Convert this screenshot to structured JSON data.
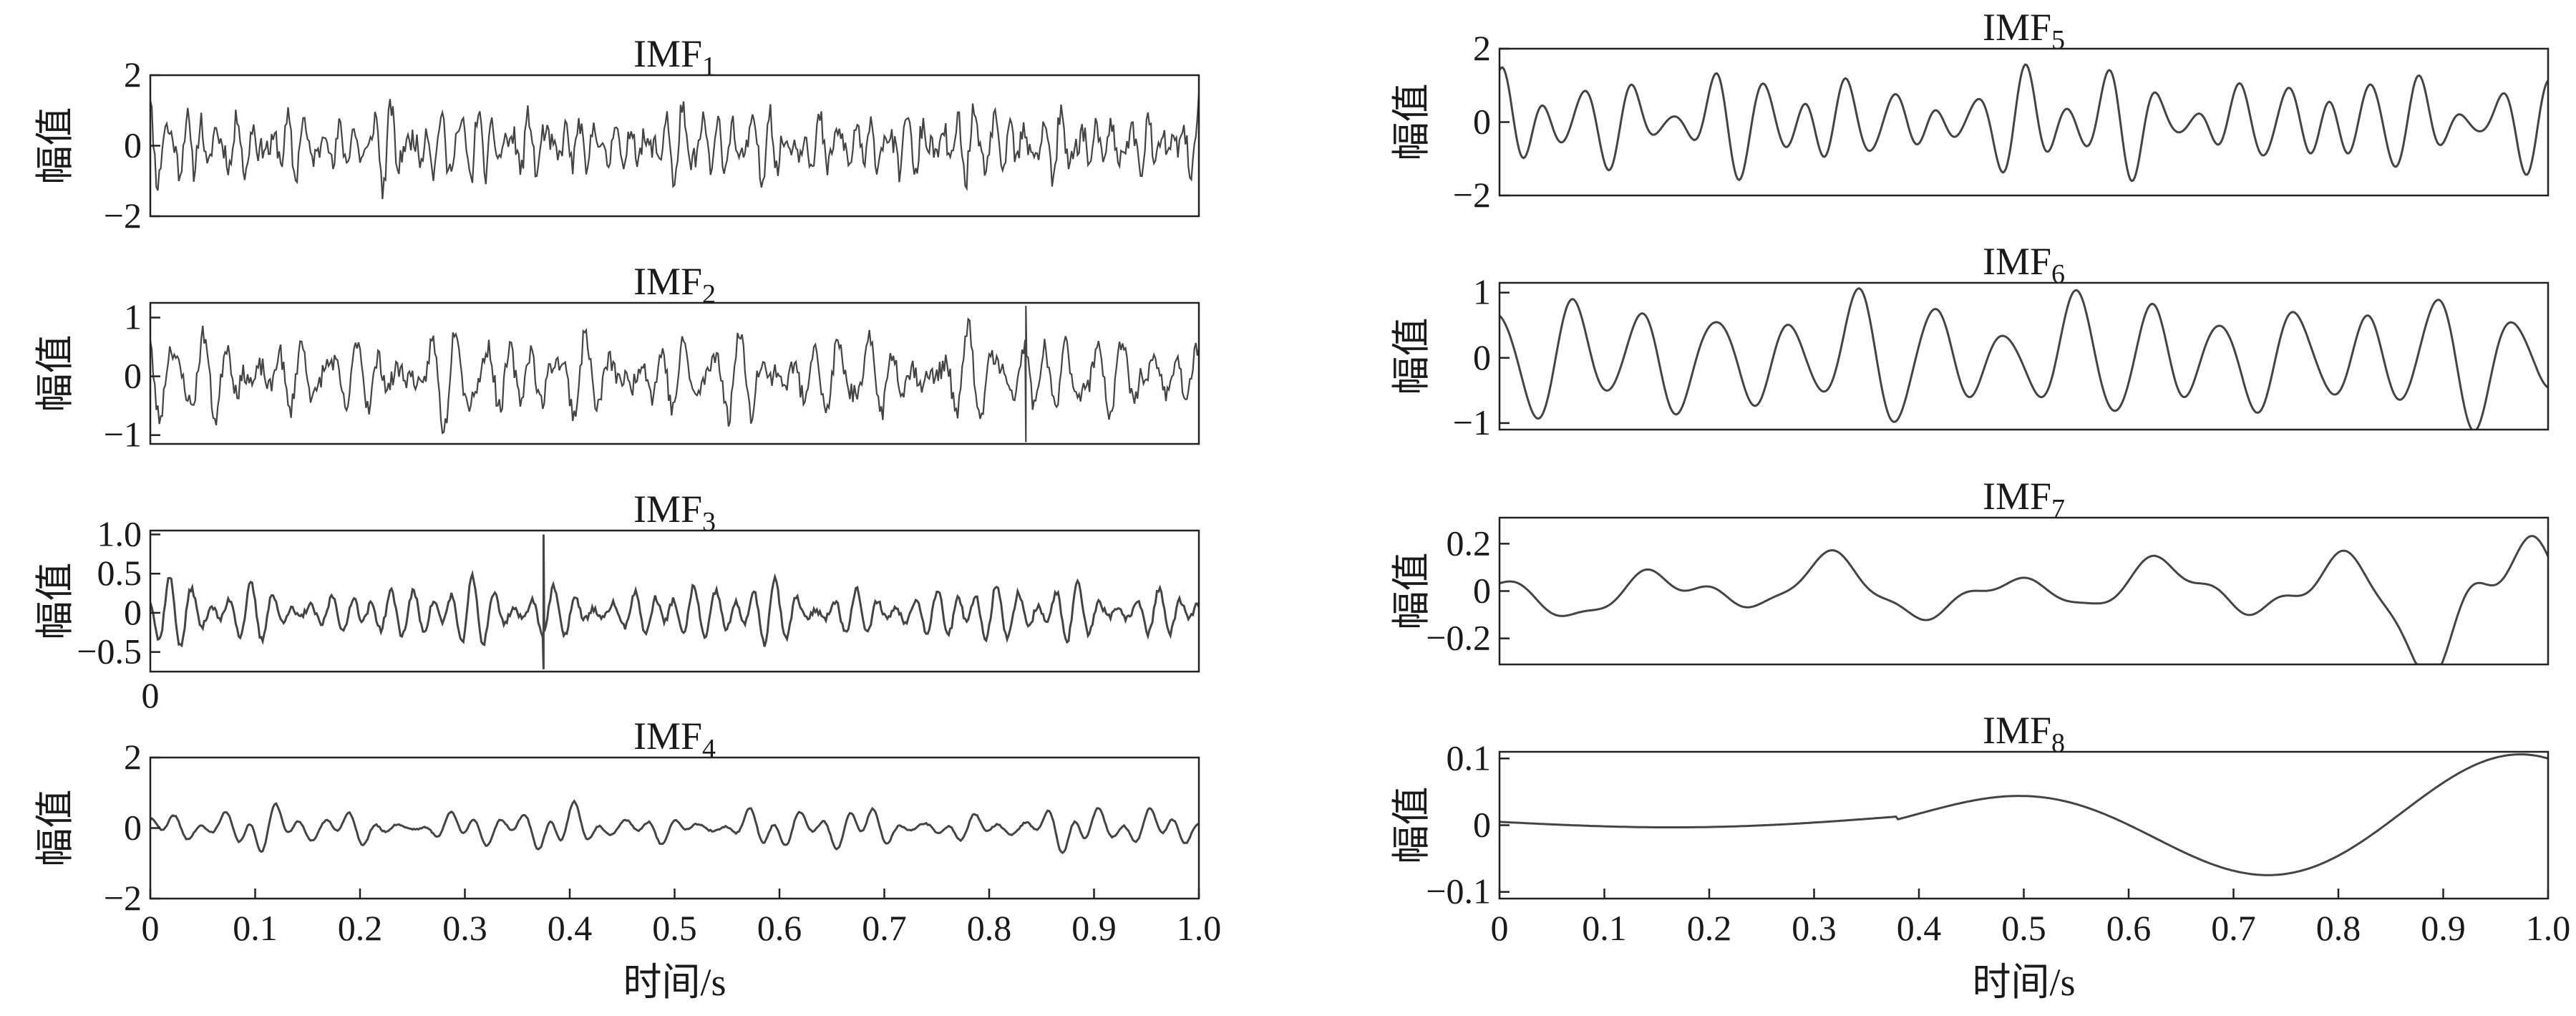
{
  "chart_data": [
    {
      "type": "line",
      "title": "IMF",
      "title_sub": "1",
      "ylabel": "幅值",
      "yticks": [
        "2",
        "0",
        "−2"
      ],
      "ylim": [
        -2,
        2
      ],
      "xlim": [
        0,
        1
      ],
      "series": [
        {
          "samples": 700,
          "seed": 11,
          "components": [
            {
              "f": 61,
              "a": 0.5
            },
            {
              "f": 83,
              "a": 0.35
            },
            {
              "f": 47,
              "a": 0.25
            }
          ],
          "noise": 0.35,
          "env": 0.25,
          "clip": 1.9
        }
      ]
    },
    {
      "type": "line",
      "title": "IMF",
      "title_sub": "2",
      "ylabel": "幅值",
      "yticks": [
        "1",
        "0",
        "−1"
      ],
      "ylim": [
        -1.15,
        1.25
      ],
      "xlim": [
        0,
        1
      ],
      "series": [
        {
          "samples": 700,
          "seed": 23,
          "components": [
            {
              "f": 41,
              "a": 0.35
            },
            {
              "f": 55,
              "a": 0.25
            },
            {
              "f": 33,
              "a": 0.2
            }
          ],
          "noise": 0.18,
          "env": 0.4,
          "clip": 1.1,
          "spikes": [
            [
              0.835,
              1.2
            ],
            [
              0.835,
              -1.12
            ]
          ]
        }
      ]
    },
    {
      "type": "line",
      "title": "IMF",
      "title_sub": "3",
      "ylabel": "幅值",
      "yticks": [
        "1.0",
        "0.5",
        "0",
        "−0.5"
      ],
      "ylim": [
        -0.75,
        1.05
      ],
      "xlim": [
        0,
        1
      ],
      "x_origin_label": "0",
      "series": [
        {
          "samples": 700,
          "seed": 37,
          "components": [
            {
              "f": 52,
              "a": 0.2
            },
            {
              "f": 38,
              "a": 0.12
            }
          ],
          "noise": 0.04,
          "env": 0.6,
          "clip": 0.85,
          "spikes": [
            [
              0.375,
              1.0
            ],
            [
              0.375,
              -0.72
            ]
          ]
        }
      ]
    },
    {
      "type": "line",
      "title": "IMF",
      "title_sub": "4",
      "ylabel": "幅值",
      "yticks": [
        "2",
        "0",
        "−2"
      ],
      "ylim": [
        -2,
        2
      ],
      "xlim": [
        0,
        1
      ],
      "xlabel": "时间/s",
      "xticks": [
        "0",
        "0.1",
        "0.2",
        "0.3",
        "0.4",
        "0.5",
        "0.6",
        "0.7",
        "0.8",
        "0.9",
        "1.0"
      ],
      "series": [
        {
          "samples": 700,
          "seed": 41,
          "components": [
            {
              "f": 42,
              "a": 0.25
            },
            {
              "f": 18,
              "a": 0.2
            }
          ],
          "noise": 0.02,
          "env": 0.9,
          "clip": 1.55
        }
      ]
    },
    {
      "type": "line",
      "title": "IMF",
      "title_sub": "5",
      "ylabel": "幅值",
      "yticks": [
        "2",
        "0",
        "−2"
      ],
      "ylim": [
        -2,
        2
      ],
      "xlim": [
        0,
        1
      ],
      "series": [
        {
          "samples": 700,
          "seed": 53,
          "components": [
            {
              "f": 24,
              "a": 0.8
            },
            {
              "f": 16,
              "a": 0.45
            }
          ],
          "noise": 0,
          "env": 0.6,
          "clip": 1.75
        }
      ]
    },
    {
      "type": "line",
      "title": "IMF",
      "title_sub": "6",
      "ylabel": "幅值",
      "yticks": [
        "1",
        "0",
        "−1"
      ],
      "ylim": [
        -1.1,
        1.15
      ],
      "xlim": [
        0,
        1
      ],
      "series": [
        {
          "samples": 700,
          "seed": 67,
          "components": [
            {
              "f": 14.5,
              "a": 0.7
            },
            {
              "f": 9,
              "a": 0.2
            }
          ],
          "noise": 0,
          "env": 0.4,
          "clip": 1.12
        }
      ]
    },
    {
      "type": "line",
      "title": "IMF",
      "title_sub": "7",
      "ylabel": "幅值",
      "yticks": [
        "0.2",
        "0",
        "−0.2"
      ],
      "ylim": [
        -0.31,
        0.31
      ],
      "xlim": [
        0,
        1
      ],
      "series": [
        {
          "samples": 600,
          "seed": 71,
          "components": [
            {
              "f": 6.2,
              "a": 0.1
            },
            {
              "f": 2.5,
              "a": 0.04
            }
          ],
          "noise": 0,
          "env": 1.0,
          "clip": 0.31,
          "growth": 1.0
        }
      ]
    },
    {
      "type": "line",
      "title": "IMF",
      "title_sub": "8",
      "ylabel": "幅值",
      "yticks": [
        "0.1",
        "0",
        "−0.1"
      ],
      "ylim": [
        -0.11,
        0.11
      ],
      "xlim": [
        0,
        1
      ],
      "xlabel": "时间/s",
      "xticks": [
        "0",
        "0.1",
        "0.2",
        "0.3",
        "0.4",
        "0.5",
        "0.6",
        "0.7",
        "0.8",
        "0.9",
        "1.0"
      ],
      "series": [
        {
          "samples": 500,
          "type": "chirp8"
        }
      ]
    }
  ]
}
